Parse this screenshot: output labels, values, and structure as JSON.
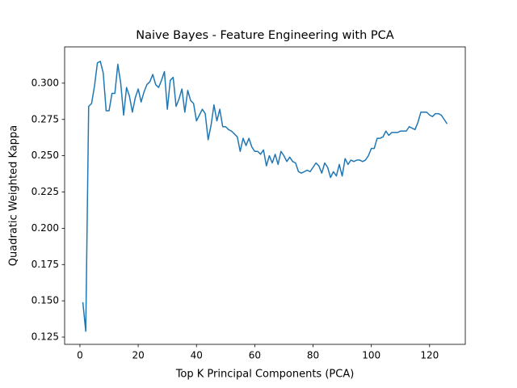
{
  "chart_data": {
    "type": "line",
    "title": "Naive Bayes - Feature Engineering with PCA",
    "xlabel": "Top K Principal Components (PCA)",
    "ylabel": "Quadratic Weighted Kappa",
    "color": "#1f77b4",
    "x": [
      1,
      2,
      3,
      4,
      5,
      6,
      7,
      8,
      9,
      10,
      11,
      12,
      13,
      14,
      15,
      16,
      17,
      18,
      19,
      20,
      21,
      22,
      23,
      24,
      25,
      26,
      27,
      28,
      29,
      30,
      31,
      32,
      33,
      34,
      35,
      36,
      37,
      38,
      39,
      40,
      41,
      42,
      43,
      44,
      45,
      46,
      47,
      48,
      49,
      50,
      51,
      52,
      53,
      54,
      55,
      56,
      57,
      58,
      59,
      60,
      61,
      62,
      63,
      64,
      65,
      66,
      67,
      68,
      69,
      70,
      71,
      72,
      73,
      74,
      75,
      76,
      77,
      78,
      79,
      80,
      81,
      82,
      83,
      84,
      85,
      86,
      87,
      88,
      89,
      90,
      91,
      92,
      93,
      94,
      95,
      96,
      97,
      98,
      99,
      100,
      101,
      102,
      103,
      104,
      105,
      106,
      107,
      108,
      109,
      110,
      111,
      112,
      113,
      114,
      115,
      116,
      117,
      118,
      119,
      120,
      121,
      122,
      123,
      124,
      125,
      126
    ],
    "values": [
      0.149,
      0.129,
      0.284,
      0.286,
      0.298,
      0.314,
      0.315,
      0.307,
      0.281,
      0.281,
      0.293,
      0.293,
      0.313,
      0.3,
      0.278,
      0.297,
      0.291,
      0.28,
      0.29,
      0.296,
      0.287,
      0.294,
      0.299,
      0.301,
      0.306,
      0.299,
      0.297,
      0.302,
      0.308,
      0.282,
      0.302,
      0.304,
      0.284,
      0.289,
      0.296,
      0.28,
      0.295,
      0.288,
      0.286,
      0.274,
      0.278,
      0.282,
      0.279,
      0.261,
      0.271,
      0.285,
      0.274,
      0.282,
      0.27,
      0.27,
      0.268,
      0.267,
      0.265,
      0.263,
      0.253,
      0.262,
      0.257,
      0.262,
      0.256,
      0.253,
      0.253,
      0.251,
      0.254,
      0.243,
      0.25,
      0.245,
      0.251,
      0.244,
      0.253,
      0.25,
      0.246,
      0.249,
      0.246,
      0.245,
      0.239,
      0.238,
      0.239,
      0.24,
      0.239,
      0.242,
      0.245,
      0.243,
      0.238,
      0.245,
      0.242,
      0.235,
      0.239,
      0.236,
      0.244,
      0.236,
      0.248,
      0.244,
      0.247,
      0.246,
      0.247,
      0.247,
      0.246,
      0.247,
      0.25,
      0.255,
      0.255,
      0.262,
      0.262,
      0.263,
      0.267,
      0.264,
      0.266,
      0.266,
      0.266,
      0.267,
      0.267,
      0.267,
      0.27,
      0.269,
      0.268,
      0.273,
      0.28,
      0.28,
      0.28,
      0.278,
      0.277,
      0.279,
      0.279,
      0.278,
      0.275,
      0.272
    ],
    "xlim": [
      -5.25,
      132.25
    ],
    "ylim": [
      0.12,
      0.325
    ],
    "xticks": [
      0,
      20,
      40,
      60,
      80,
      100,
      120
    ],
    "yticks": [
      0.125,
      {
        "value": 0.15,
        "label": "0.150"
      },
      0.175,
      {
        "value": 0.2,
        "label": "0.200"
      },
      0.225,
      {
        "value": 0.25,
        "label": "0.250"
      },
      0.275,
      {
        "value": 0.3,
        "label": "0.300"
      }
    ]
  }
}
